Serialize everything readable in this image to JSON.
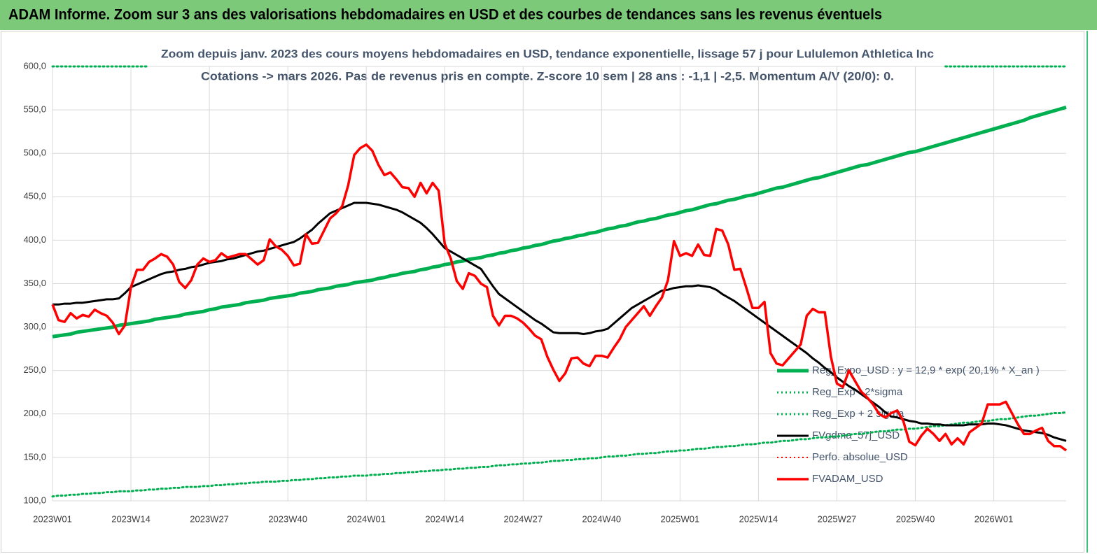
{
  "chart_data": {
    "type": "line",
    "header": "ADAM Informe. Zoom sur 3 ans des valorisations hebdomadaires en USD et des courbes de tendances sans les revenus éventuels",
    "title": "Zoom depuis janv. 2023 des cours moyens hebdomadaires en USD, tendance exponentielle, lissage 57 j pour Lululemon Athletica Inc",
    "subtitle": "Cotations -> mars 2026. Pas de revenus pris en compte. Z-score 10 sem | 28 ans : -1,1 | -2,5. Momentum A/V (20/0): 0.",
    "categories": [
      "2023W01",
      null,
      null,
      null,
      null,
      null,
      null,
      null,
      null,
      null,
      null,
      null,
      null,
      "2023W14",
      null,
      null,
      null,
      null,
      null,
      null,
      null,
      null,
      null,
      null,
      null,
      null,
      "2023W27",
      null,
      null,
      null,
      null,
      null,
      null,
      null,
      null,
      null,
      null,
      null,
      null,
      "2023W40",
      null,
      null,
      null,
      null,
      null,
      null,
      null,
      null,
      null,
      null,
      null,
      null,
      "2024W01",
      null,
      null,
      null,
      null,
      null,
      null,
      null,
      null,
      null,
      null,
      null,
      null,
      "2024W14",
      null,
      null,
      null,
      null,
      null,
      null,
      null,
      null,
      null,
      null,
      null,
      null,
      "2024W27",
      null,
      null,
      null,
      null,
      null,
      null,
      null,
      null,
      null,
      null,
      null,
      null,
      "2024W40",
      null,
      null,
      null,
      null,
      null,
      null,
      null,
      null,
      null,
      null,
      null,
      null,
      "2025W01",
      null,
      null,
      null,
      null,
      null,
      null,
      null,
      null,
      null,
      null,
      null,
      null,
      "2025W14",
      null,
      null,
      null,
      null,
      null,
      null,
      null,
      null,
      null,
      null,
      null,
      null,
      "2025W27",
      null,
      null,
      null,
      null,
      null,
      null,
      null,
      null,
      null,
      null,
      null,
      null,
      "2025W40",
      null,
      null,
      null,
      null,
      null,
      null,
      null,
      null,
      null,
      null,
      null,
      null,
      "2026W01",
      null,
      null,
      null,
      null,
      null,
      null,
      null,
      null,
      null,
      null,
      null,
      null
    ],
    "ylim": [
      100,
      600
    ],
    "yticks": [
      {
        "value": 100,
        "label": "100,0"
      },
      {
        "value": 150,
        "label": "150,0"
      },
      {
        "value": 200,
        "label": "200,0"
      },
      {
        "value": 250,
        "label": "250,0"
      },
      {
        "value": 300,
        "label": "300,0"
      },
      {
        "value": 350,
        "label": "350,0"
      },
      {
        "value": 400,
        "label": "400,0"
      },
      {
        "value": 450,
        "label": "450,0"
      },
      {
        "value": 500,
        "label": "500,0"
      },
      {
        "value": 550,
        "label": "550,0"
      },
      {
        "value": 600,
        "label": "600,0"
      }
    ],
    "grid": true,
    "legend": "lower right",
    "series": [
      {
        "name": "Reg_Expo_USD : y = 12,9 * exp( 20,1% * X_an )",
        "color": "#00b050",
        "style": "solid",
        "width": 5,
        "values": [
          289,
          290,
          291,
          292,
          294,
          295,
          296,
          297,
          298,
          299,
          300,
          302,
          303,
          304,
          305,
          306,
          307,
          309,
          310,
          311,
          312,
          313,
          315,
          316,
          317,
          318,
          320,
          321,
          323,
          324,
          325,
          326,
          328,
          329,
          330,
          331,
          333,
          334,
          335,
          336,
          337,
          339,
          340,
          341,
          343,
          344,
          345,
          347,
          348,
          349,
          351,
          352,
          353,
          354,
          356,
          357,
          359,
          360,
          362,
          363,
          364,
          366,
          367,
          369,
          370,
          372,
          373,
          375,
          376,
          378,
          379,
          380,
          382,
          383,
          385,
          386,
          388,
          389,
          391,
          392,
          394,
          395,
          397,
          399,
          400,
          402,
          403,
          405,
          406,
          408,
          409,
          411,
          413,
          414,
          416,
          417,
          419,
          421,
          422,
          424,
          425,
          427,
          429,
          430,
          432,
          434,
          435,
          437,
          439,
          441,
          442,
          444,
          446,
          447,
          449,
          451,
          452,
          454,
          456,
          458,
          460,
          461,
          463,
          465,
          467,
          469,
          471,
          472,
          474,
          476,
          478,
          480,
          482,
          484,
          486,
          487,
          489,
          491,
          493,
          495,
          497,
          499,
          501,
          502,
          504,
          506,
          508,
          510,
          512,
          514,
          516,
          518,
          520,
          522,
          524,
          526,
          528,
          530,
          532,
          534,
          536,
          538,
          541,
          543,
          545,
          547,
          549,
          551,
          553
        ]
      },
      {
        "name": "Reg_Exp - 2*sigma",
        "color": "#00b050",
        "style": "dotted",
        "width": 3,
        "values": [
          105,
          106,
          106,
          107,
          107,
          108,
          108,
          109,
          109,
          110,
          110,
          111,
          111,
          111,
          112,
          112,
          113,
          113,
          114,
          114,
          115,
          115,
          116,
          116,
          116,
          117,
          117,
          118,
          118,
          119,
          119,
          120,
          120,
          121,
          121,
          122,
          122,
          122,
          123,
          123,
          124,
          124,
          125,
          125,
          126,
          126,
          127,
          127,
          128,
          128,
          129,
          129,
          129,
          130,
          130,
          131,
          131,
          132,
          132,
          133,
          133,
          134,
          134,
          135,
          135,
          136,
          136,
          137,
          137,
          138,
          138,
          139,
          139,
          140,
          141,
          141,
          142,
          142,
          143,
          143,
          144,
          144,
          145,
          146,
          146,
          147,
          147,
          148,
          148,
          149,
          149,
          150,
          151,
          151,
          152,
          152,
          153,
          154,
          154,
          155,
          155,
          156,
          157,
          157,
          158,
          158,
          159,
          160,
          160,
          161,
          162,
          162,
          163,
          163,
          164,
          165,
          165,
          166,
          167,
          167,
          168,
          169,
          169,
          170,
          171,
          171,
          172,
          173,
          173,
          174,
          174,
          175,
          176,
          177,
          177,
          178,
          179,
          180,
          180,
          181,
          182,
          182,
          183,
          183,
          184,
          185,
          186,
          186,
          187,
          188,
          189,
          190,
          190,
          191,
          192,
          192,
          193,
          194,
          194,
          195,
          196,
          197,
          198,
          198,
          199,
          200,
          201,
          201,
          202
        ]
      },
      {
        "name": "Reg_Exp + 2 sigma",
        "color": "#00b050",
        "style": "dotted",
        "width": 3,
        "values": [
          600,
          600,
          600,
          600,
          600,
          600,
          600,
          600,
          600,
          600,
          600,
          600,
          600,
          600,
          600,
          600,
          600,
          null,
          null,
          null,
          null,
          null,
          null,
          null,
          null,
          null,
          null,
          null,
          null,
          null,
          null,
          null,
          null,
          null,
          null,
          null,
          null,
          null,
          null,
          null,
          null,
          null,
          null,
          null,
          null,
          null,
          null,
          null,
          null,
          null,
          null,
          null,
          null,
          null,
          null,
          null,
          null,
          null,
          null,
          null,
          null,
          null,
          null,
          null,
          null,
          null,
          null,
          null,
          null,
          null,
          null,
          null,
          null,
          null,
          null,
          null,
          null,
          null,
          null,
          null,
          null,
          null,
          null,
          null,
          null,
          null,
          null,
          null,
          null,
          null,
          null,
          null,
          null,
          null,
          null,
          null,
          null,
          null,
          null,
          null,
          null,
          null,
          null,
          null,
          null,
          null,
          null,
          null,
          null,
          null,
          null,
          null,
          null,
          null,
          null,
          null,
          null,
          null,
          null,
          null,
          null,
          null,
          null,
          null,
          null,
          null,
          null,
          null,
          null,
          null,
          null,
          null,
          null,
          null,
          null,
          null,
          null,
          null,
          null,
          null,
          null,
          null,
          null,
          null,
          null,
          null,
          null,
          null,
          600,
          600,
          600,
          600,
          600,
          600,
          600,
          600,
          600,
          600,
          600,
          600,
          600,
          600,
          600,
          600,
          600,
          600,
          600,
          600,
          600
        ]
      },
      {
        "name": "FVgdma_57j_USD",
        "color": "#000000",
        "style": "solid",
        "width": 3,
        "values": [
          326,
          326,
          327,
          327,
          328,
          328,
          329,
          330,
          331,
          332,
          332,
          333,
          339,
          346,
          349,
          352,
          355,
          358,
          361,
          363,
          364,
          366,
          367,
          369,
          370,
          372,
          374,
          375,
          376,
          378,
          379,
          381,
          383,
          385,
          387,
          388,
          390,
          392,
          394,
          396,
          398,
          402,
          407,
          412,
          419,
          425,
          431,
          434,
          437,
          440,
          443,
          443,
          443,
          442,
          441,
          439,
          437,
          435,
          432,
          428,
          424,
          420,
          414,
          407,
          399,
          391,
          387,
          383,
          379,
          375,
          371,
          367,
          357,
          347,
          338,
          333,
          328,
          323,
          318,
          313,
          308,
          304,
          299,
          294,
          293,
          293,
          293,
          293,
          292,
          293,
          295,
          296,
          298,
          304,
          310,
          316,
          322,
          326,
          330,
          334,
          338,
          342,
          343,
          345,
          346,
          347,
          347,
          348,
          347,
          346,
          343,
          338,
          334,
          330,
          325,
          320,
          315,
          310,
          305,
          300,
          295,
          290,
          285,
          280,
          275,
          270,
          264,
          259,
          253,
          248,
          242,
          237,
          232,
          228,
          223,
          218,
          213,
          208,
          202,
          197,
          196,
          194,
          192,
          191,
          189,
          189,
          188,
          188,
          187,
          187,
          187,
          187,
          188,
          188,
          188,
          189,
          189,
          188,
          187,
          185,
          183,
          181,
          180,
          179,
          178,
          176,
          173,
          171,
          169
        ]
      },
      {
        "name": "Perfo. absolue_USD",
        "color": "#ff0000",
        "style": "dotted",
        "width": 2,
        "values": [
          null,
          null,
          null,
          null,
          null,
          null,
          null,
          null,
          null,
          null,
          null,
          null,
          null,
          null,
          null,
          null,
          null,
          null,
          null,
          null,
          null,
          null,
          null,
          null,
          null,
          null,
          null,
          null,
          null,
          null,
          null,
          null,
          null,
          null,
          null,
          null,
          null,
          null,
          null,
          null,
          null,
          null,
          null,
          null,
          null,
          null,
          null,
          null,
          null,
          null,
          null,
          null,
          null,
          null,
          null,
          null,
          null,
          null,
          null,
          null,
          null,
          null,
          null,
          null,
          null,
          null,
          null,
          null,
          null,
          null,
          null,
          null,
          null,
          null,
          null,
          null,
          null,
          null,
          null,
          null,
          null,
          null,
          null,
          null,
          null,
          null,
          null,
          null,
          null,
          null,
          null,
          null,
          null,
          null,
          null,
          null,
          null,
          null,
          null,
          null,
          null,
          null,
          null,
          null,
          null,
          null,
          null,
          null,
          null,
          null,
          null,
          null,
          null,
          null,
          null,
          null,
          null,
          null,
          null,
          null,
          null,
          null,
          null,
          null,
          null,
          null,
          null,
          null,
          null,
          null,
          null,
          null,
          null,
          null,
          null,
          null,
          null,
          null,
          null,
          null,
          null,
          null,
          null,
          null,
          null,
          null,
          null,
          null,
          null,
          null,
          null,
          null,
          null,
          null,
          null,
          null,
          null,
          null,
          null,
          null,
          null,
          null,
          null,
          null,
          null,
          null,
          null,
          null,
          null
        ]
      },
      {
        "name": "FVADAM_USD",
        "color": "#ff0000",
        "style": "solid",
        "width": 3.5,
        "values": [
          326,
          308,
          306,
          316,
          310,
          314,
          312,
          320,
          316,
          313,
          305,
          292,
          302,
          346,
          366,
          366,
          375,
          379,
          384,
          381,
          372,
          352,
          345,
          354,
          372,
          379,
          375,
          377,
          385,
          380,
          382,
          384,
          384,
          378,
          372,
          377,
          401,
          393,
          389,
          382,
          371,
          373,
          407,
          396,
          397,
          411,
          425,
          431,
          439,
          463,
          498,
          506,
          510,
          503,
          487,
          475,
          478,
          470,
          461,
          460,
          450,
          466,
          454,
          466,
          457,
          396,
          379,
          353,
          344,
          362,
          359,
          350,
          346,
          313,
          302,
          313,
          313,
          310,
          305,
          298,
          290,
          286,
          266,
          251,
          238,
          247,
          264,
          265,
          258,
          255,
          267,
          267,
          265,
          276,
          286,
          300,
          308,
          316,
          324,
          313,
          324,
          334,
          354,
          399,
          382,
          385,
          382,
          395,
          383,
          382,
          413,
          411,
          395,
          366,
          367,
          345,
          322,
          322,
          329,
          270,
          258,
          256,
          264,
          272,
          280,
          313,
          321,
          317,
          317,
          266,
          235,
          231,
          250,
          238,
          226,
          219,
          211,
          200,
          196,
          201,
          204,
          192,
          168,
          164,
          175,
          183,
          177,
          169,
          177,
          165,
          172,
          165,
          179,
          184,
          189,
          211,
          211,
          211,
          214,
          201,
          188,
          177,
          177,
          181,
          184,
          169,
          163,
          163,
          158
        ]
      }
    ]
  }
}
